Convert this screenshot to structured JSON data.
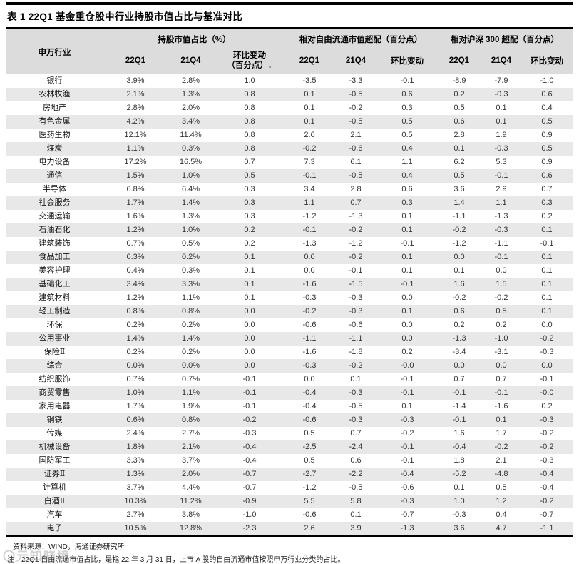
{
  "title": "表 1 22Q1 基金重仓股中行业持股市值占比与基准对比",
  "table": {
    "industry_header": "申万行业",
    "groups": [
      {
        "label": "持股市值占比（%）",
        "cols": [
          "22Q1",
          "21Q4",
          "环比变动\n（百分点）↓"
        ]
      },
      {
        "label": "相对自由流通市值超配（百分点）",
        "cols": [
          "22Q1",
          "21Q4",
          "环比变动"
        ]
      },
      {
        "label": "相对沪深 300 超配（百分点）",
        "cols": [
          "22Q1",
          "21Q4",
          "环比变动"
        ]
      }
    ],
    "rows": [
      {
        "industry": "银行",
        "cells": [
          "3.9%",
          "2.8%",
          "1.0",
          "-3.5",
          "-3.3",
          "-0.1",
          "-8.9",
          "-7.9",
          "-1.0"
        ]
      },
      {
        "industry": "农林牧渔",
        "cells": [
          "2.1%",
          "1.3%",
          "0.8",
          "0.1",
          "-0.5",
          "0.6",
          "0.2",
          "-0.3",
          "0.6"
        ]
      },
      {
        "industry": "房地产",
        "cells": [
          "2.8%",
          "2.0%",
          "0.8",
          "0.1",
          "-0.2",
          "0.3",
          "0.5",
          "0.1",
          "0.4"
        ]
      },
      {
        "industry": "有色金属",
        "cells": [
          "4.2%",
          "3.4%",
          "0.8",
          "0.1",
          "-0.5",
          "0.5",
          "0.6",
          "0.1",
          "0.5"
        ]
      },
      {
        "industry": "医药生物",
        "cells": [
          "12.1%",
          "11.4%",
          "0.8",
          "2.6",
          "2.1",
          "0.5",
          "2.8",
          "1.9",
          "0.9"
        ]
      },
      {
        "industry": "煤炭",
        "cells": [
          "1.1%",
          "0.3%",
          "0.8",
          "-0.2",
          "-0.6",
          "0.4",
          "0.1",
          "-0.3",
          "0.5"
        ]
      },
      {
        "industry": "电力设备",
        "cells": [
          "17.2%",
          "16.5%",
          "0.7",
          "7.3",
          "6.1",
          "1.1",
          "6.2",
          "5.3",
          "0.9"
        ]
      },
      {
        "industry": "通信",
        "cells": [
          "1.5%",
          "1.0%",
          "0.5",
          "-0.1",
          "-0.5",
          "0.4",
          "0.5",
          "-0.1",
          "0.6"
        ]
      },
      {
        "industry": "半导体",
        "cells": [
          "6.8%",
          "6.4%",
          "0.3",
          "3.4",
          "2.8",
          "0.6",
          "3.6",
          "2.9",
          "0.7"
        ]
      },
      {
        "industry": "社会服务",
        "cells": [
          "1.7%",
          "1.4%",
          "0.3",
          "1.1",
          "0.7",
          "0.3",
          "1.4",
          "1.1",
          "0.3"
        ]
      },
      {
        "industry": "交通运输",
        "cells": [
          "1.6%",
          "1.3%",
          "0.3",
          "-1.2",
          "-1.3",
          "0.1",
          "-1.1",
          "-1.3",
          "0.2"
        ]
      },
      {
        "industry": "石油石化",
        "cells": [
          "1.2%",
          "1.0%",
          "0.2",
          "-0.1",
          "-0.2",
          "0.1",
          "-0.2",
          "-0.3",
          "0.1"
        ]
      },
      {
        "industry": "建筑装饰",
        "cells": [
          "0.7%",
          "0.5%",
          "0.2",
          "-1.3",
          "-1.2",
          "-0.1",
          "-1.2",
          "-1.1",
          "-0.1"
        ]
      },
      {
        "industry": "食品加工",
        "cells": [
          "0.3%",
          "0.2%",
          "0.1",
          "0.0",
          "-0.2",
          "0.1",
          "0.0",
          "-0.1",
          "0.1"
        ]
      },
      {
        "industry": "美容护理",
        "cells": [
          "0.4%",
          "0.3%",
          "0.1",
          "0.0",
          "-0.1",
          "0.1",
          "0.1",
          "0.0",
          "0.1"
        ]
      },
      {
        "industry": "基础化工",
        "cells": [
          "3.4%",
          "3.3%",
          "0.1",
          "-1.6",
          "-1.5",
          "-0.1",
          "1.6",
          "1.5",
          "0.1"
        ]
      },
      {
        "industry": "建筑材料",
        "cells": [
          "1.2%",
          "1.1%",
          "0.1",
          "-0.3",
          "-0.3",
          "0.0",
          "-0.2",
          "-0.2",
          "0.1"
        ]
      },
      {
        "industry": "轻工制造",
        "cells": [
          "0.8%",
          "0.8%",
          "0.0",
          "-0.2",
          "-0.3",
          "0.1",
          "0.6",
          "0.5",
          "0.1"
        ]
      },
      {
        "industry": "环保",
        "cells": [
          "0.2%",
          "0.2%",
          "0.0",
          "-0.6",
          "-0.6",
          "0.0",
          "0.2",
          "0.2",
          "0.0"
        ]
      },
      {
        "industry": "公用事业",
        "cells": [
          "1.4%",
          "1.4%",
          "0.0",
          "-1.1",
          "-1.1",
          "0.0",
          "-1.3",
          "-1.0",
          "-0.2"
        ]
      },
      {
        "industry": "保险Ⅱ",
        "cells": [
          "0.2%",
          "0.2%",
          "0.0",
          "-1.6",
          "-1.8",
          "0.2",
          "-3.4",
          "-3.1",
          "-0.3"
        ]
      },
      {
        "industry": "综合",
        "cells": [
          "0.0%",
          "0.0%",
          "0.0",
          "-0.3",
          "-0.2",
          "-0.0",
          "0.0",
          "0.0",
          "0.0"
        ]
      },
      {
        "industry": "纺织服饰",
        "cells": [
          "0.7%",
          "0.7%",
          "-0.1",
          "0.0",
          "0.1",
          "-0.1",
          "0.7",
          "0.7",
          "-0.1"
        ]
      },
      {
        "industry": "商贸零售",
        "cells": [
          "1.0%",
          "1.1%",
          "-0.1",
          "-0.4",
          "-0.3",
          "-0.1",
          "-0.1",
          "-0.1",
          "-0.0"
        ]
      },
      {
        "industry": "家用电器",
        "cells": [
          "1.7%",
          "1.9%",
          "-0.1",
          "-0.4",
          "-0.5",
          "0.1",
          "-1.4",
          "-1.6",
          "0.2"
        ]
      },
      {
        "industry": "钢铁",
        "cells": [
          "0.6%",
          "0.8%",
          "-0.2",
          "-0.6",
          "-0.3",
          "-0.3",
          "-0.1",
          "0.1",
          "-0.3"
        ]
      },
      {
        "industry": "传媒",
        "cells": [
          "2.4%",
          "2.7%",
          "-0.3",
          "0.5",
          "0.7",
          "-0.2",
          "1.6",
          "1.7",
          "-0.2"
        ]
      },
      {
        "industry": "机械设备",
        "cells": [
          "1.8%",
          "2.1%",
          "-0.4",
          "-2.5",
          "-2.4",
          "-0.1",
          "-0.4",
          "-0.2",
          "-0.2"
        ]
      },
      {
        "industry": "国防军工",
        "cells": [
          "3.3%",
          "3.7%",
          "-0.4",
          "0.5",
          "0.6",
          "-0.1",
          "1.8",
          "2.1",
          "-0.3"
        ]
      },
      {
        "industry": "证券Ⅱ",
        "cells": [
          "1.3%",
          "2.0%",
          "-0.7",
          "-2.7",
          "-2.2",
          "-0.4",
          "-5.2",
          "-4.8",
          "-0.4"
        ]
      },
      {
        "industry": "计算机",
        "cells": [
          "3.7%",
          "4.4%",
          "-0.7",
          "-1.2",
          "-0.5",
          "-0.6",
          "0.1",
          "0.5",
          "-0.4"
        ]
      },
      {
        "industry": "白酒Ⅱ",
        "cells": [
          "10.3%",
          "11.2%",
          "-0.9",
          "5.5",
          "5.8",
          "-0.3",
          "1.0",
          "1.2",
          "-0.2"
        ]
      },
      {
        "industry": "汽车",
        "cells": [
          "2.7%",
          "3.8%",
          "-1.0",
          "-0.6",
          "0.1",
          "-0.7",
          "-0.3",
          "0.4",
          "-0.7"
        ]
      },
      {
        "industry": "电子",
        "cells": [
          "10.5%",
          "12.8%",
          "-2.3",
          "2.6",
          "3.9",
          "-1.3",
          "3.6",
          "4.7",
          "-1.1"
        ]
      }
    ]
  },
  "footer": {
    "source": "资料来源：WIND，海通证券研究所",
    "note": "注：22Q1 自由流通市值占比，是指 22 年 3 月 31 日，上市 A 股的自由流通市值按照申万行业分类的占比。"
  },
  "watermark": "〇元知晓境",
  "colors": {
    "header_bg": "#dcdcdc",
    "stripe_bg": "#e8e8e8",
    "rule": "#000000"
  }
}
